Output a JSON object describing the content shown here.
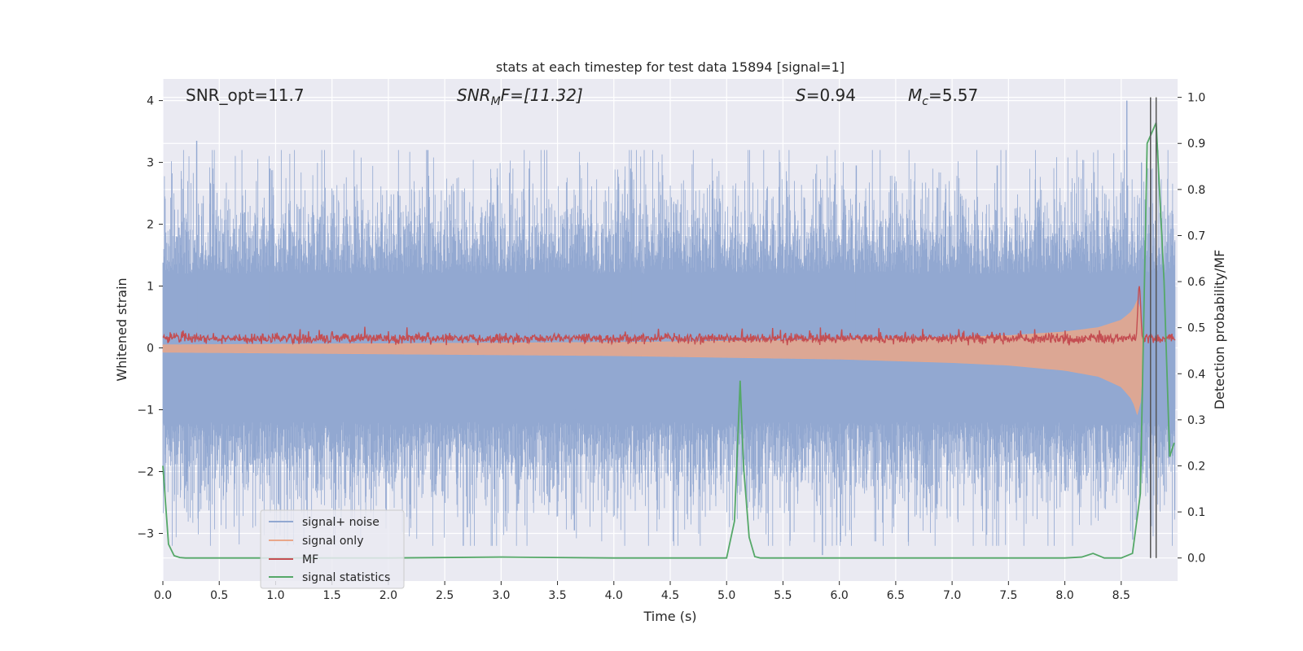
{
  "chart_data": {
    "type": "line",
    "title": "stats at each timestep for test data 15894 [signal=1]",
    "xlabel": "Time (s)",
    "ylabel": "Whitened strain",
    "y2label": "Detection probability/MF",
    "xlim": [
      0.0,
      9.0
    ],
    "ylim": [
      -3.77,
      4.35
    ],
    "y2lim": [
      -0.05,
      1.04
    ],
    "grid": true,
    "x_ticks": [
      0.0,
      0.5,
      1.0,
      1.5,
      2.0,
      2.5,
      3.0,
      3.5,
      4.0,
      4.5,
      5.0,
      5.5,
      6.0,
      6.5,
      7.0,
      7.5,
      8.0,
      8.5
    ],
    "x_tick_labels": [
      "0.0",
      "0.5",
      "1.0",
      "1.5",
      "2.0",
      "2.5",
      "3.0",
      "3.5",
      "4.0",
      "4.5",
      "5.0",
      "5.5",
      "6.0",
      "6.5",
      "7.0",
      "7.5",
      "8.0",
      "8.5"
    ],
    "y_ticks": [
      4,
      3,
      2,
      1,
      0,
      -1,
      -2,
      -3
    ],
    "y_tick_labels": [
      "4",
      "3",
      "2",
      "1",
      "0",
      "−1",
      "−2",
      "−3"
    ],
    "y2_ticks": [
      1.0,
      0.9,
      0.8,
      0.7,
      0.6,
      0.5,
      0.4,
      0.3,
      0.2,
      0.1,
      0.0
    ],
    "y2_tick_labels": [
      "1.0",
      "0.9",
      "0.8",
      "0.7",
      "0.6",
      "0.5",
      "0.4",
      "0.3",
      "0.2",
      "0.1",
      "0.0"
    ],
    "annotations": {
      "snr_opt": "SNR_opt=11.7",
      "snr_mf_main": "SNR",
      "snr_mf_sub": "M",
      "snr_mf_rest": "F=[11.32]",
      "s_main": "S",
      "s_rest": "=0.94",
      "mc_main": "M",
      "mc_sub": "c",
      "mc_rest": "=5.57"
    },
    "vertical_lines": [
      8.76,
      8.81
    ],
    "legend_position": "lower-left",
    "series": [
      {
        "name": "signal+ noise",
        "color": "#92a8d1",
        "axis": "left",
        "description": "dense whitened strain noise band",
        "envelope_typical": 1.2,
        "envelope_max": 3.8,
        "peaks": [
          {
            "t": 0.3,
            "v": 3.35
          },
          {
            "t": 0.95,
            "v": 2.9
          },
          {
            "t": 2.35,
            "v": 3.2
          },
          {
            "t": 2.7,
            "v": -2.9
          },
          {
            "t": 3.25,
            "v": 2.9
          },
          {
            "t": 3.65,
            "v": -2.95
          },
          {
            "t": 4.15,
            "v": 2.9
          },
          {
            "t": 5.85,
            "v": -3.35
          },
          {
            "t": 6.15,
            "v": 2.95
          },
          {
            "t": 7.4,
            "v": 2.95
          },
          {
            "t": 8.55,
            "v": 4.0
          },
          {
            "t": 8.68,
            "v": 3.0
          }
        ]
      },
      {
        "name": "signal only",
        "color": "#e9a78a",
        "axis": "left",
        "description": "chirp envelope growing toward merger",
        "envelope_t": [
          0.0,
          1.0,
          2.0,
          3.0,
          4.0,
          5.0,
          6.0,
          7.0,
          7.5,
          8.0,
          8.3,
          8.5,
          8.6,
          8.65,
          8.68,
          8.7
        ],
        "envelope_v": [
          0.05,
          0.06,
          0.07,
          0.08,
          0.09,
          0.11,
          0.13,
          0.17,
          0.2,
          0.26,
          0.33,
          0.45,
          0.6,
          0.8,
          0.55,
          0.0
        ]
      },
      {
        "name": "MF",
        "color": "#c44e52",
        "axis": "left",
        "description": "matched filter output",
        "baseline": 0.15,
        "noise": 0.08,
        "peak": {
          "t": 8.66,
          "v": 1.0
        }
      },
      {
        "name": "signal statistics",
        "color": "#55a868",
        "axis": "right",
        "x": [
          0.0,
          0.05,
          0.1,
          0.15,
          0.2,
          0.5,
          1.0,
          2.0,
          3.0,
          4.0,
          4.9,
          5.0,
          5.07,
          5.12,
          5.15,
          5.2,
          5.25,
          5.3,
          6.0,
          7.0,
          8.0,
          8.15,
          8.25,
          8.35,
          8.5,
          8.6,
          8.67,
          8.73,
          8.81,
          8.88,
          8.93,
          8.97
        ],
        "y": [
          0.2,
          0.03,
          0.005,
          0.001,
          0.0,
          0.0,
          0.0,
          0.0,
          0.002,
          0.0,
          0.0,
          0.0,
          0.08,
          0.385,
          0.2,
          0.045,
          0.003,
          0.0,
          0.0,
          0.0,
          0.0,
          0.002,
          0.01,
          0.0,
          0.0,
          0.01,
          0.14,
          0.9,
          0.945,
          0.6,
          0.22,
          0.25
        ]
      }
    ]
  }
}
